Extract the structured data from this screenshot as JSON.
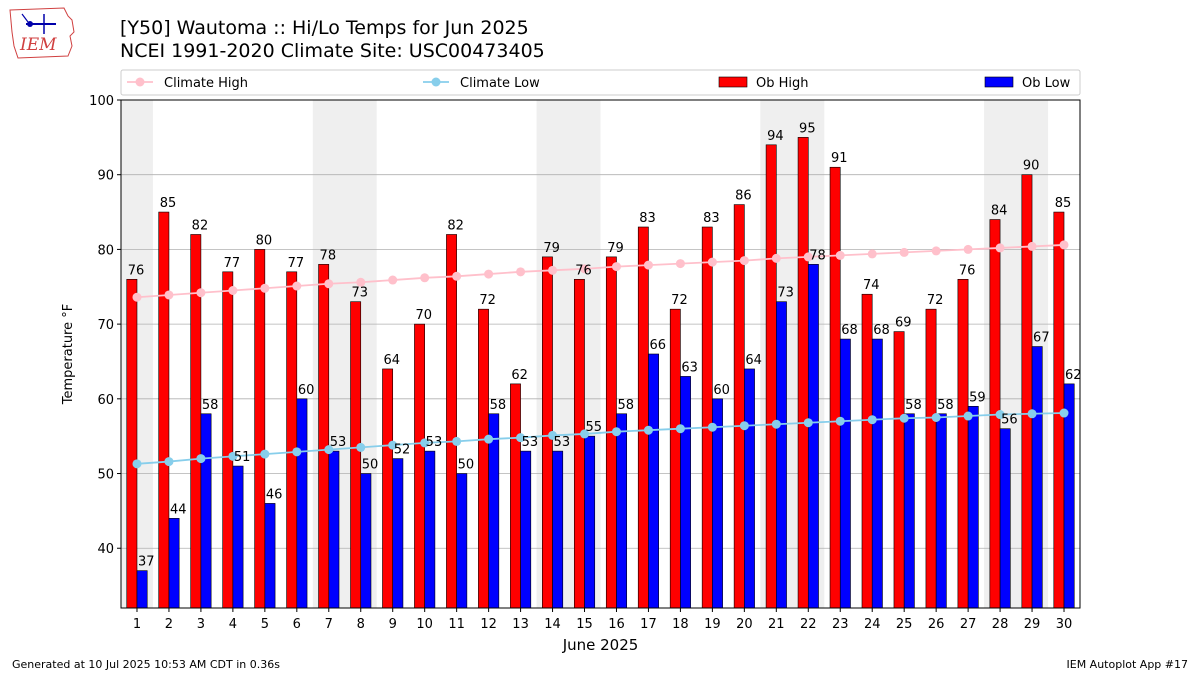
{
  "logo": {
    "text": "IEM"
  },
  "header": {
    "title_line1": "[Y50] Wautoma :: Hi/Lo Temps for Jun 2025",
    "title_line2": "NCEI 1991-2020 Climate Site: USC00473405"
  },
  "footer": {
    "left": "Generated at 10 Jul 2025 10:53 AM CDT in 0.36s",
    "right": "IEM Autoplot App #17"
  },
  "chart_data": {
    "type": "bar",
    "xlabel": "June 2025",
    "ylabel": "Temperature °F",
    "ylim": [
      32,
      100
    ],
    "yticks": [
      40,
      50,
      60,
      70,
      80,
      90,
      100
    ],
    "grid": true,
    "legend_position": "top",
    "weekend_shading": [
      [
        1,
        1
      ],
      [
        7,
        8
      ],
      [
        14,
        15
      ],
      [
        21,
        22
      ],
      [
        28,
        29
      ]
    ],
    "categories": [
      "1",
      "2",
      "3",
      "4",
      "5",
      "6",
      "7",
      "8",
      "9",
      "10",
      "11",
      "12",
      "13",
      "14",
      "15",
      "16",
      "17",
      "18",
      "19",
      "20",
      "21",
      "22",
      "23",
      "24",
      "25",
      "26",
      "27",
      "28",
      "29",
      "30"
    ],
    "series": [
      {
        "name": "Ob High",
        "kind": "bar",
        "color": "#ff0000",
        "values": [
          76,
          85,
          82,
          77,
          80,
          77,
          78,
          73,
          64,
          70,
          82,
          72,
          62,
          79,
          76,
          79,
          83,
          72,
          83,
          86,
          94,
          95,
          91,
          74,
          69,
          72,
          76,
          84,
          90,
          85
        ]
      },
      {
        "name": "Ob Low",
        "kind": "bar",
        "color": "#0000ff",
        "values": [
          37,
          44,
          58,
          51,
          46,
          60,
          53,
          50,
          52,
          53,
          50,
          58,
          53,
          53,
          55,
          58,
          66,
          63,
          60,
          64,
          73,
          78,
          68,
          68,
          58,
          58,
          59,
          56,
          67,
          62
        ]
      },
      {
        "name": "Climate High",
        "kind": "line",
        "color": "#ffc0cb",
        "values": [
          73.6,
          73.9,
          74.2,
          74.5,
          74.8,
          75.1,
          75.4,
          75.6,
          75.9,
          76.2,
          76.4,
          76.7,
          77.0,
          77.2,
          77.4,
          77.7,
          77.9,
          78.1,
          78.3,
          78.5,
          78.8,
          79.0,
          79.2,
          79.4,
          79.6,
          79.8,
          80.0,
          80.2,
          80.4,
          80.6
        ]
      },
      {
        "name": "Climate Low",
        "kind": "line",
        "color": "#87ceeb",
        "values": [
          51.3,
          51.6,
          52.0,
          52.3,
          52.6,
          52.9,
          53.2,
          53.5,
          53.8,
          54.1,
          54.3,
          54.6,
          54.8,
          55.1,
          55.3,
          55.6,
          55.8,
          56.0,
          56.2,
          56.4,
          56.6,
          56.8,
          57.0,
          57.2,
          57.4,
          57.5,
          57.7,
          57.9,
          58.0,
          58.1
        ]
      }
    ]
  }
}
